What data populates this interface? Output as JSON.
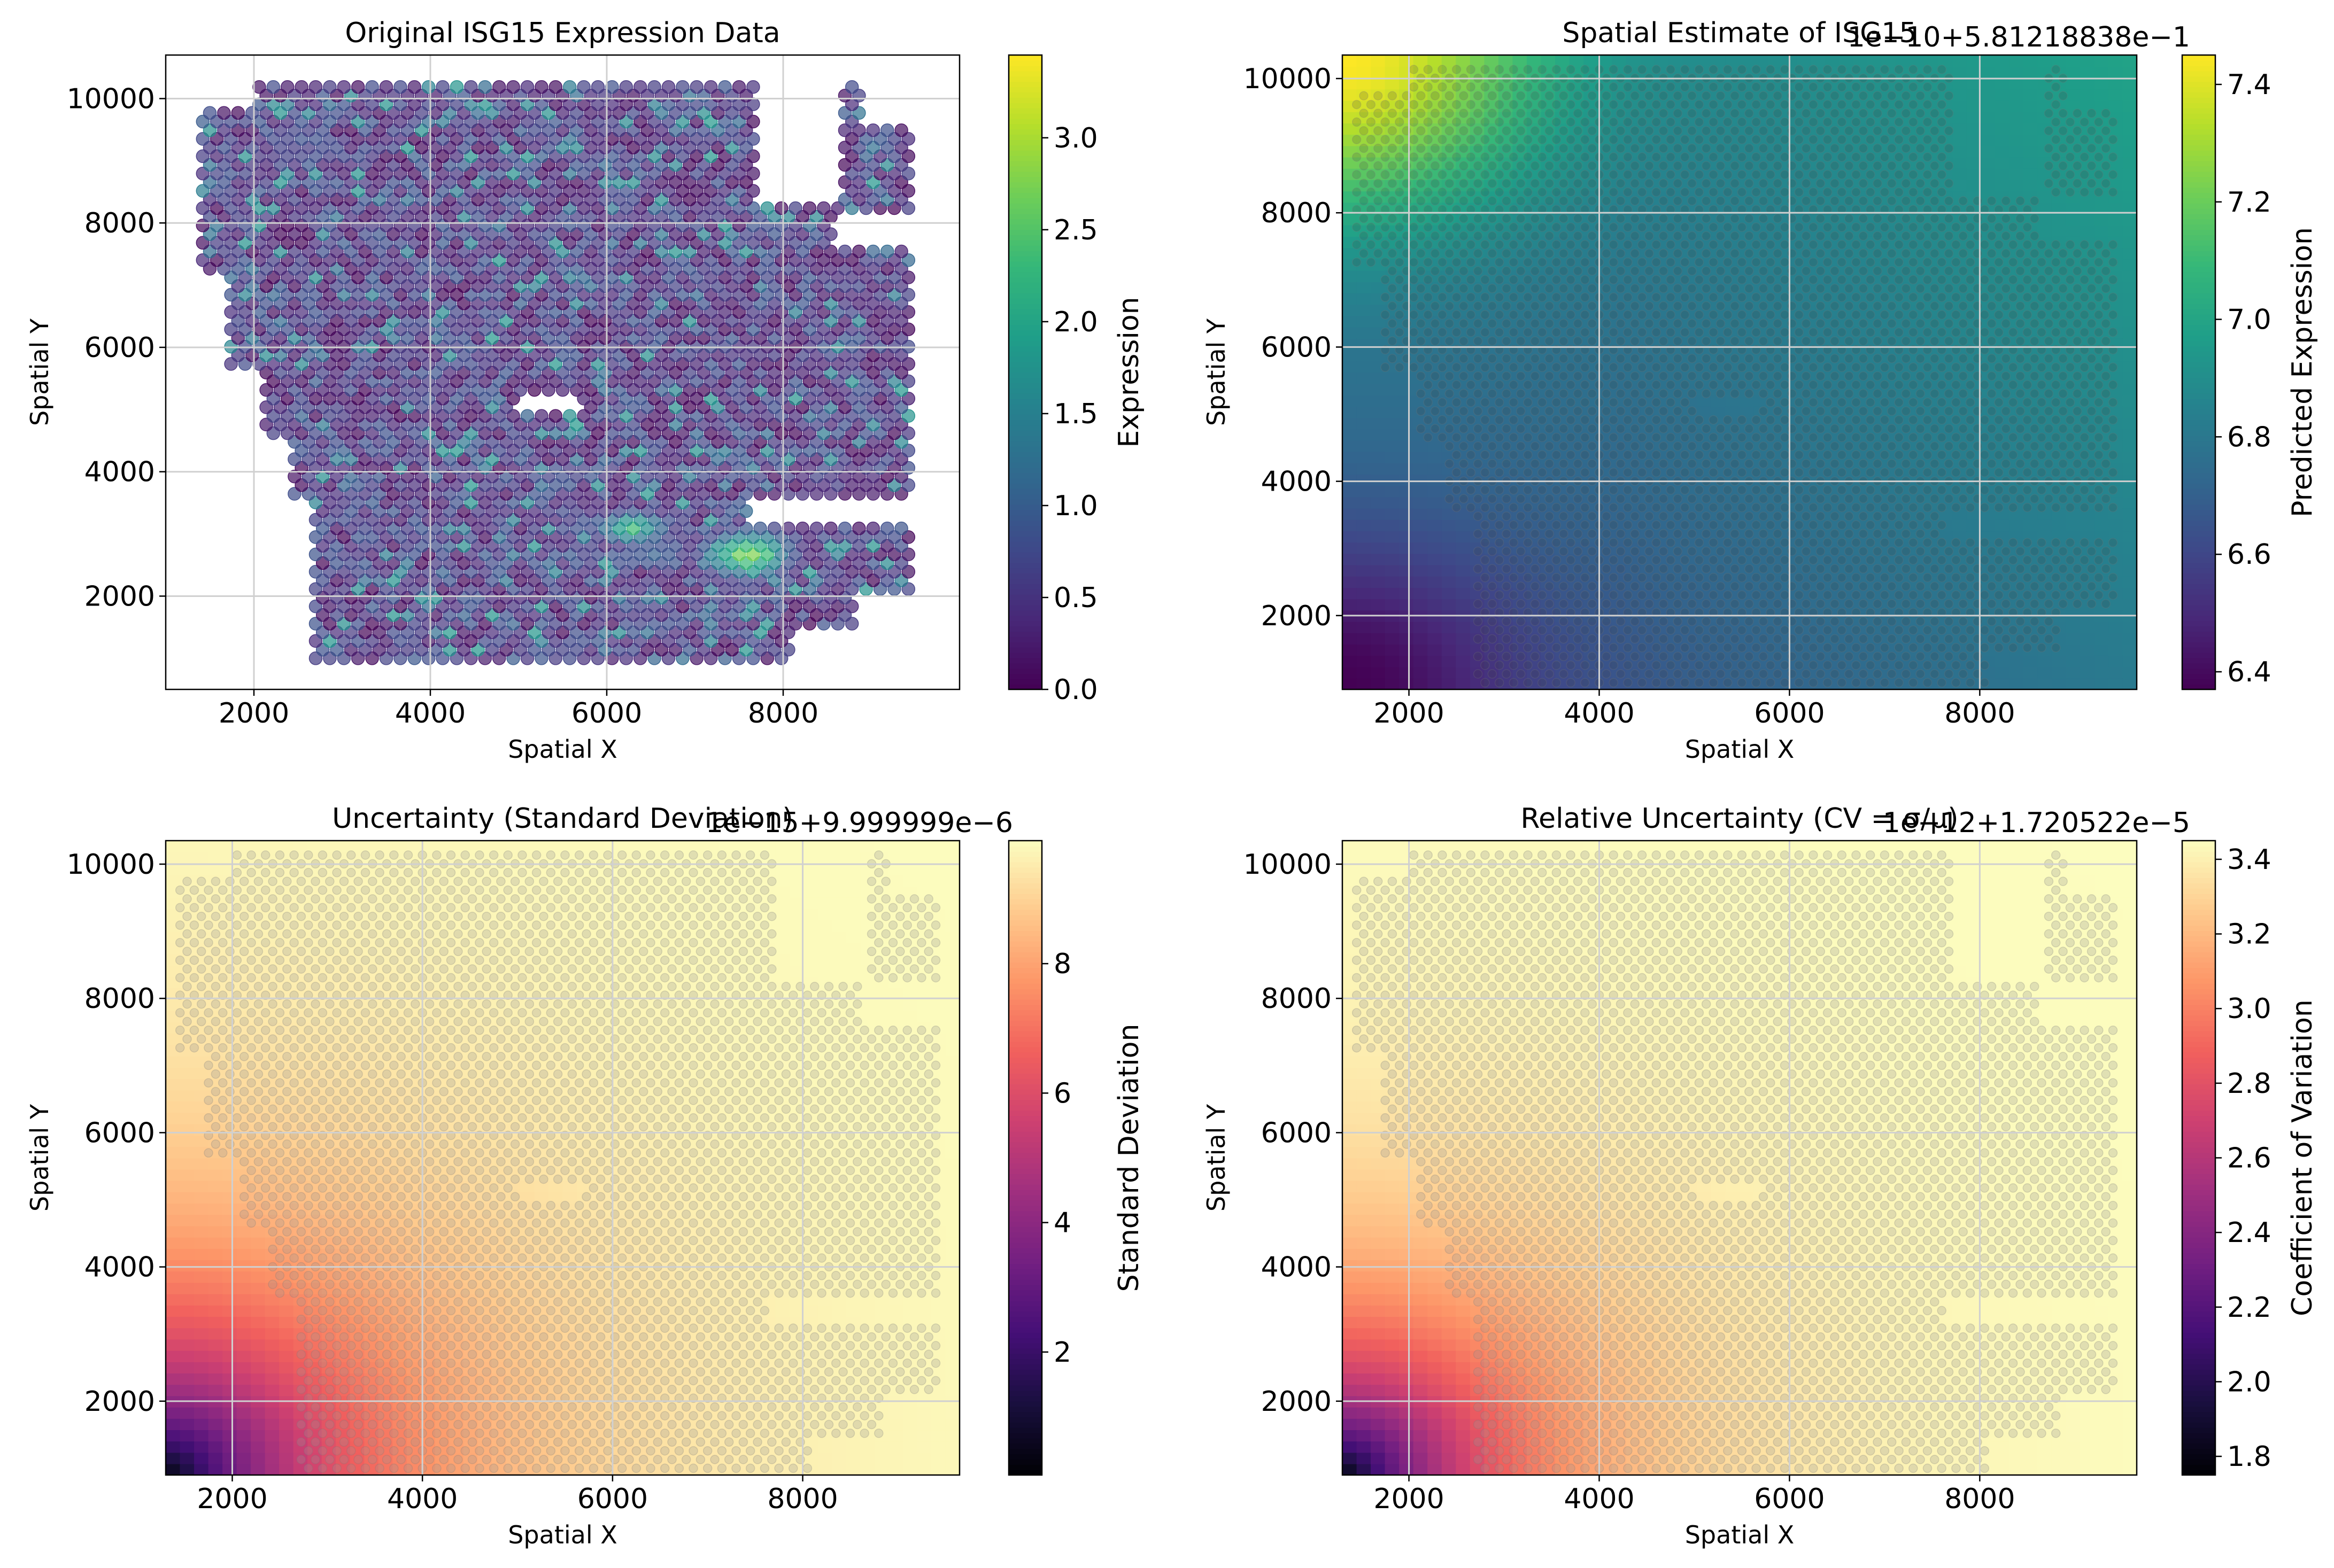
{
  "figure": {
    "background": "#ffffff"
  },
  "chart_data": [
    {
      "id": "original",
      "type": "scatter",
      "title": "Original ISG15 Expression Data",
      "xlabel": "Spatial X",
      "ylabel": "Spatial Y",
      "xlim": [
        1000,
        10000
      ],
      "ylim": [
        500,
        10700
      ],
      "xticks": [
        2000,
        4000,
        6000,
        8000
      ],
      "yticks": [
        2000,
        4000,
        6000,
        8000,
        10000
      ],
      "grid": true,
      "colormap": "viridis",
      "point_alpha": 0.7,
      "colorbar": {
        "label": "Expression",
        "range": [
          0.0,
          3.45
        ],
        "ticks": [
          "0.0",
          "0.5",
          "1.0",
          "1.5",
          "2.0",
          "2.5",
          "3.0"
        ],
        "offset_text": ""
      },
      "tissue_extent": {
        "x": [
          1400,
          9500
        ],
        "y": [
          950,
          10250
        ]
      },
      "hotspots": [
        {
          "x": 7600,
          "y": 2700,
          "value": 2.9,
          "spread_x": 500,
          "spread_y": 380
        },
        {
          "x": 6300,
          "y": 3100,
          "value": 2.4,
          "spread_x": 420,
          "spread_y": 260
        },
        {
          "x": 6600,
          "y": 6600,
          "value": 3.4,
          "spread_x": 60,
          "spread_y": 60
        }
      ],
      "baseline_range": [
        0.0,
        1.3
      ]
    },
    {
      "id": "estimate",
      "type": "heatmap",
      "title": "Spatial Estimate of ISG15",
      "xlabel": "Spatial X",
      "ylabel": "Spatial Y",
      "xlim": [
        1300,
        9650
      ],
      "ylim": [
        900,
        10350
      ],
      "xticks": [
        2000,
        4000,
        6000,
        8000
      ],
      "yticks": [
        2000,
        4000,
        6000,
        8000,
        10000
      ],
      "grid": true,
      "colormap": "viridis",
      "offset_text": "1e−10+5.81218838e−1",
      "colorbar": {
        "label": "Predicted Expression",
        "range": [
          6.37,
          7.45
        ],
        "ticks": [
          "6.4",
          "6.6",
          "6.8",
          "7.0",
          "7.2",
          "7.4"
        ]
      },
      "field": {
        "corner_top_left": 7.45,
        "corner_bottom_left": 6.37,
        "center": 6.75,
        "right": 6.92
      }
    },
    {
      "id": "std",
      "type": "heatmap",
      "title": "Uncertainty (Standard Deviation)",
      "xlabel": "Spatial X",
      "ylabel": "Spatial Y",
      "xlim": [
        1300,
        9650
      ],
      "ylim": [
        900,
        10350
      ],
      "xticks": [
        2000,
        4000,
        6000,
        8000
      ],
      "yticks": [
        2000,
        4000,
        6000,
        8000,
        10000
      ],
      "grid": true,
      "colormap": "magma",
      "offset_text": "1e−15+9.999999e−6",
      "colorbar": {
        "label": "Standard Deviation",
        "range": [
          0.1,
          9.9
        ],
        "ticks": [
          "2",
          "4",
          "6",
          "8"
        ]
      },
      "field": {
        "min_at": [
          1300,
          900
        ],
        "min": 0.1,
        "max": 9.9
      }
    },
    {
      "id": "cv",
      "type": "heatmap",
      "title": "Relative Uncertainty (CV = σ/μ)",
      "xlabel": "Spatial X",
      "ylabel": "Spatial Y",
      "xlim": [
        1300,
        9650
      ],
      "ylim": [
        900,
        10350
      ],
      "xticks": [
        2000,
        4000,
        6000,
        8000
      ],
      "yticks": [
        2000,
        4000,
        6000,
        8000,
        10000
      ],
      "grid": true,
      "colormap": "magma",
      "offset_text": "1e−12+1.720522e−5",
      "colorbar": {
        "label": "Coefficient of Variation",
        "range": [
          1.75,
          3.45
        ],
        "ticks": [
          "1.8",
          "2.0",
          "2.2",
          "2.4",
          "2.6",
          "2.8",
          "3.0",
          "3.2",
          "3.4"
        ]
      },
      "field": {
        "min_at": [
          1300,
          900
        ],
        "min": 1.75,
        "max": 3.45
      }
    }
  ]
}
